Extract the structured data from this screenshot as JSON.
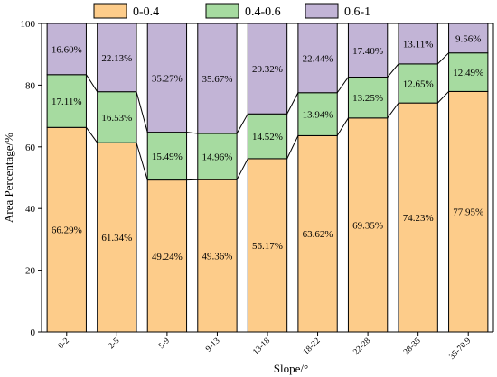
{
  "chart_data": {
    "type": "bar",
    "stacked": true,
    "title": "",
    "xlabel": "Slope/°",
    "ylabel": "Area Percentage/%",
    "ylim": [
      0,
      100
    ],
    "yticks": [
      0,
      20,
      40,
      60,
      80,
      100
    ],
    "grid": false,
    "legend_position": "top",
    "connector_lines": true,
    "categories": [
      "0-2",
      "2-5",
      "5-9",
      "9-13",
      "13-18",
      "18-22",
      "22-28",
      "28-35",
      "35-70.9"
    ],
    "series": [
      {
        "name": "0-0.4",
        "color": "#fdcc8a",
        "values": [
          66.29,
          61.34,
          49.24,
          49.36,
          56.17,
          63.62,
          69.35,
          74.23,
          77.95
        ],
        "labels": [
          "66.29%",
          "61.34%",
          "49.24%",
          "49.36%",
          "56.17%",
          "63.62%",
          "69.35%",
          "74.23%",
          "77.95%"
        ]
      },
      {
        "name": "0.4-0.6",
        "color": "#a6dba0",
        "values": [
          17.11,
          16.53,
          15.49,
          14.96,
          14.52,
          13.94,
          13.25,
          12.65,
          12.49
        ],
        "labels": [
          "17.11%",
          "16.53%",
          "15.49%",
          "14.96%",
          "14.52%",
          "13.94%",
          "13.25%",
          "12.65%",
          "12.49%"
        ]
      },
      {
        "name": "0.6-1",
        "color": "#c2b4d6",
        "values": [
          16.6,
          22.13,
          35.27,
          35.67,
          29.32,
          22.44,
          17.4,
          13.11,
          9.56
        ],
        "labels": [
          "16.60%",
          "22.13%",
          "35.27%",
          "35.67%",
          "29.32%",
          "22.44%",
          "17.40%",
          "13.11%",
          "9.56%"
        ]
      }
    ]
  }
}
